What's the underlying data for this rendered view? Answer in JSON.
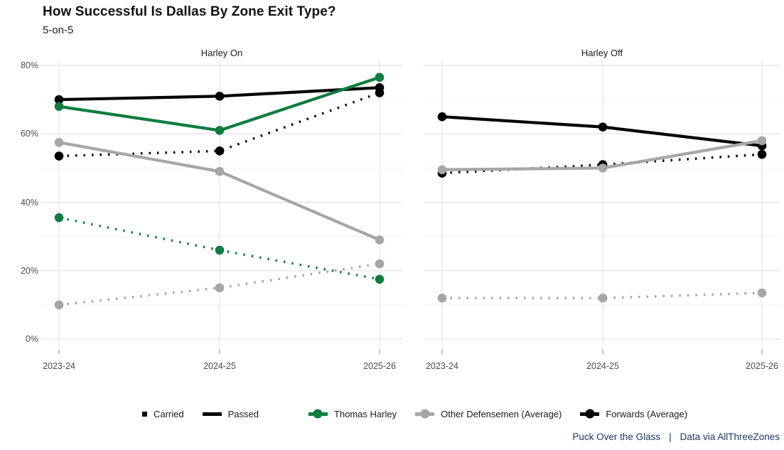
{
  "header": {
    "title": "How Successful Is Dallas By Zone Exit Type?",
    "subtitle": "5-on-5"
  },
  "footer": {
    "credit_left": "Puck Over the Glass",
    "separator": "|",
    "credit_right": "Data via AllThreeZones"
  },
  "chart_data": {
    "type": "line",
    "categories": [
      "2023-24",
      "2024-25",
      "2025-26"
    ],
    "ylim": [
      0,
      80
    ],
    "y_major_ticks": [
      0,
      20,
      40,
      60,
      80
    ],
    "y_minor_ticks": [
      10,
      30,
      50,
      70
    ],
    "y_tick_labels": [
      "0%",
      "20%",
      "40%",
      "60%",
      "80%"
    ],
    "grid": true,
    "legend_position": "bottom",
    "line_styles": {
      "passed": "solid",
      "carried": "dotted"
    },
    "colors": {
      "thomas_harley": "#0d7d3f",
      "other_defensemen": "#a6a6a6",
      "forwards": "#000000"
    },
    "panels": [
      {
        "title": "Harley On",
        "series": [
          {
            "name": "Forwards (Average) - Passed",
            "group": "forwards",
            "exit_type": "passed",
            "values": [
              70,
              71,
              73.5
            ]
          },
          {
            "name": "Forwards (Average) - Carried",
            "group": "forwards",
            "exit_type": "carried",
            "values": [
              53.5,
              55,
              72
            ]
          },
          {
            "name": "Other Defensemen (Average) - Passed",
            "group": "other_defensemen",
            "exit_type": "passed",
            "values": [
              57.5,
              49,
              29
            ]
          },
          {
            "name": "Other Defensemen (Average) - Carried",
            "group": "other_defensemen",
            "exit_type": "carried",
            "values": [
              10,
              15,
              22
            ]
          },
          {
            "name": "Thomas Harley - Passed",
            "group": "thomas_harley",
            "exit_type": "passed",
            "values": [
              68,
              61,
              76.5
            ]
          },
          {
            "name": "Thomas Harley - Carried",
            "group": "thomas_harley",
            "exit_type": "carried",
            "values": [
              35.5,
              26,
              17.5
            ]
          }
        ]
      },
      {
        "title": "Harley Off",
        "series": [
          {
            "name": "Forwards (Average) - Passed",
            "group": "forwards",
            "exit_type": "passed",
            "values": [
              65,
              62,
              56.5
            ]
          },
          {
            "name": "Forwards (Average) - Carried",
            "group": "forwards",
            "exit_type": "carried",
            "values": [
              48.5,
              51,
              54
            ]
          },
          {
            "name": "Other Defensemen (Average) - Passed",
            "group": "other_defensemen",
            "exit_type": "passed",
            "values": [
              49.5,
              50,
              58
            ]
          },
          {
            "name": "Other Defensemen (Average) - Carried",
            "group": "other_defensemen",
            "exit_type": "carried",
            "values": [
              12,
              12,
              13.5
            ]
          }
        ]
      }
    ],
    "legend": [
      {
        "label": "Carried",
        "key": "square",
        "color": "#000000"
      },
      {
        "label": "Passed",
        "key": "line",
        "color": "#000000"
      },
      {
        "label": "Thomas Harley",
        "key": "line-dot",
        "color": "#0d7d3f"
      },
      {
        "label": "Other Defensemen (Average)",
        "key": "line-dot",
        "color": "#a6a6a6"
      },
      {
        "label": "Forwards (Average)",
        "key": "line-dot",
        "color": "#000000"
      }
    ]
  }
}
